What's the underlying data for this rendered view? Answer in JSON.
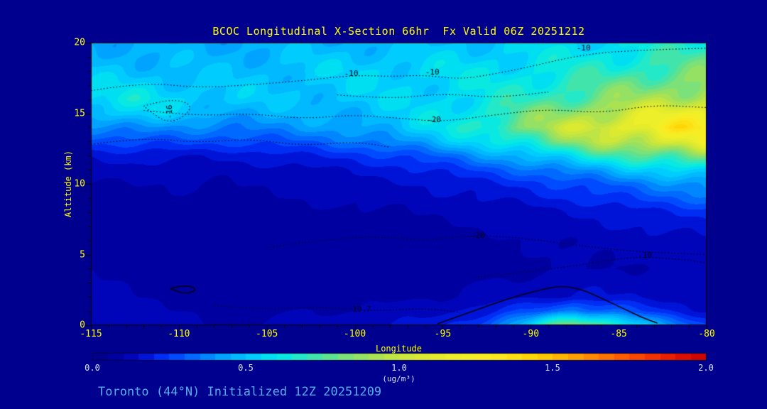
{
  "page": {
    "background": "#00008E",
    "accent_yellow": "#FFFF00",
    "caption_blue": "#57ACE8",
    "pale_label": "#CFE9FF"
  },
  "caption": "Toronto (44°N) Initialized 12Z 20251209",
  "chart_data": {
    "type": "heatmap",
    "title": "BCOC Longitudinal X-Section 66hr  Fx Valid 06Z 20251212",
    "xlabel": "Longitude",
    "ylabel": "Altitude (km)",
    "xlim": [
      -115,
      -80
    ],
    "ylim": [
      0,
      20
    ],
    "x_ticks": [
      -115,
      -110,
      -105,
      -100,
      -95,
      -90,
      -85,
      -80
    ],
    "y_ticks": [
      0,
      5,
      10,
      15,
      20
    ],
    "grid_on": false,
    "colorbar": {
      "min": 0.0,
      "max": 2.0,
      "tick_labels": [
        "0.0",
        "0.5",
        "1.0",
        "1.5",
        "2.0"
      ],
      "units_label": "(ug/m³)"
    },
    "grid": {
      "x": [
        -115,
        -112.5,
        -110,
        -107.5,
        -105,
        -102.5,
        -100,
        -97.5,
        -95,
        -92.5,
        -90,
        -87.5,
        -85,
        -82.5,
        -80
      ],
      "y": [
        0,
        1,
        2,
        4,
        6,
        8,
        10,
        11,
        12,
        13,
        14,
        15,
        16,
        18,
        20
      ],
      "values": [
        [
          0.16,
          0.13,
          0.11,
          0.1,
          0.11,
          0.12,
          0.13,
          0.15,
          0.18,
          0.3,
          0.55,
          0.9,
          0.7,
          0.4,
          0.25
        ],
        [
          0.14,
          0.11,
          0.1,
          0.09,
          0.09,
          0.1,
          0.1,
          0.12,
          0.14,
          0.18,
          0.26,
          0.38,
          0.3,
          0.2,
          0.15
        ],
        [
          0.12,
          0.1,
          0.08,
          0.07,
          0.07,
          0.08,
          0.08,
          0.09,
          0.1,
          0.12,
          0.14,
          0.16,
          0.15,
          0.13,
          0.12
        ],
        [
          0.09,
          0.08,
          0.07,
          0.06,
          0.06,
          0.06,
          0.07,
          0.07,
          0.08,
          0.08,
          0.09,
          0.1,
          0.1,
          0.11,
          0.11
        ],
        [
          0.08,
          0.07,
          0.07,
          0.06,
          0.06,
          0.07,
          0.07,
          0.08,
          0.08,
          0.09,
          0.1,
          0.11,
          0.12,
          0.13,
          0.14
        ],
        [
          0.09,
          0.08,
          0.08,
          0.08,
          0.08,
          0.09,
          0.09,
          0.1,
          0.11,
          0.12,
          0.13,
          0.15,
          0.17,
          0.2,
          0.22
        ],
        [
          0.1,
          0.1,
          0.1,
          0.1,
          0.11,
          0.12,
          0.13,
          0.14,
          0.16,
          0.19,
          0.22,
          0.27,
          0.32,
          0.37,
          0.42
        ],
        [
          0.12,
          0.13,
          0.12,
          0.12,
          0.13,
          0.14,
          0.16,
          0.18,
          0.22,
          0.27,
          0.33,
          0.4,
          0.47,
          0.54,
          0.6
        ],
        [
          0.16,
          0.17,
          0.16,
          0.16,
          0.18,
          0.2,
          0.22,
          0.26,
          0.32,
          0.4,
          0.5,
          0.6,
          0.7,
          0.78,
          0.85
        ],
        [
          0.26,
          0.28,
          0.27,
          0.26,
          0.28,
          0.3,
          0.34,
          0.4,
          0.48,
          0.58,
          0.7,
          0.85,
          0.98,
          1.08,
          1.15
        ],
        [
          0.38,
          0.4,
          0.38,
          0.36,
          0.38,
          0.4,
          0.44,
          0.5,
          0.58,
          0.7,
          0.85,
          1.0,
          1.15,
          1.25,
          1.32
        ],
        [
          0.52,
          0.55,
          0.5,
          0.46,
          0.45,
          0.46,
          0.48,
          0.52,
          0.58,
          0.66,
          0.78,
          0.9,
          1.02,
          1.12,
          1.2
        ],
        [
          0.58,
          0.6,
          0.55,
          0.52,
          0.5,
          0.5,
          0.52,
          0.54,
          0.56,
          0.6,
          0.68,
          0.76,
          0.85,
          0.92,
          1.0
        ],
        [
          0.5,
          0.5,
          0.49,
          0.48,
          0.5,
          0.52,
          0.54,
          0.55,
          0.56,
          0.58,
          0.6,
          0.64,
          0.68,
          0.74,
          0.8
        ],
        [
          0.45,
          0.44,
          0.44,
          0.45,
          0.46,
          0.47,
          0.48,
          0.48,
          0.5,
          0.52,
          0.54,
          0.56,
          0.58,
          0.62,
          0.65
        ]
      ]
    },
    "colormap": [
      [
        0.0,
        "#000084"
      ],
      [
        0.05,
        "#000096"
      ],
      [
        0.1,
        "#0000AA"
      ],
      [
        0.15,
        "#000AC8"
      ],
      [
        0.2,
        "#001EE6"
      ],
      [
        0.25,
        "#003CFF"
      ],
      [
        0.3,
        "#005AFF"
      ],
      [
        0.35,
        "#0078FF"
      ],
      [
        0.4,
        "#0096FF"
      ],
      [
        0.45,
        "#00AFFF"
      ],
      [
        0.5,
        "#00C3FF"
      ],
      [
        0.55,
        "#00D7FA"
      ],
      [
        0.6,
        "#00E6EB"
      ],
      [
        0.65,
        "#14EBD7"
      ],
      [
        0.7,
        "#32E6B9"
      ],
      [
        0.8,
        "#6EE182"
      ],
      [
        0.9,
        "#A0E15A"
      ],
      [
        1.0,
        "#C8E63C"
      ],
      [
        1.1,
        "#E1EB2D"
      ],
      [
        1.2,
        "#F0F028"
      ],
      [
        1.3,
        "#FAEB23"
      ],
      [
        1.45,
        "#FFD200"
      ],
      [
        1.6,
        "#FF9600"
      ],
      [
        1.75,
        "#FF5000"
      ],
      [
        1.9,
        "#E61400"
      ],
      [
        2.0,
        "#C80000"
      ]
    ],
    "contours": {
      "line_color": "#000014",
      "lines": [
        {
          "style": "dotted",
          "points": [
            [
              -115,
              16.6
            ],
            [
              -112,
              17.2
            ],
            [
              -109,
              16.8
            ],
            [
              -106,
              17.0
            ],
            [
              -103,
              17.3
            ],
            [
              -100,
              17.7
            ],
            [
              -98,
              17.6
            ],
            [
              -96,
              17.7
            ],
            [
              -94,
              17.4
            ],
            [
              -92,
              17.8
            ],
            [
              -90,
              18.3
            ],
            [
              -88,
              18.9
            ],
            [
              -86,
              19.3
            ],
            [
              -83,
              19.5
            ],
            [
              -80,
              19.6
            ]
          ]
        },
        {
          "style": "dotted",
          "points": [
            [
              -112,
              15.2
            ],
            [
              -109,
              14.8
            ],
            [
              -106,
              15.0
            ],
            [
              -103,
              14.6
            ],
            [
              -100,
              14.9
            ],
            [
              -97,
              14.6
            ],
            [
              -95,
              14.4
            ],
            [
              -92,
              14.9
            ],
            [
              -89,
              15.3
            ],
            [
              -86,
              15.0
            ],
            [
              -83,
              15.6
            ],
            [
              -80,
              15.4
            ]
          ]
        },
        {
          "style": "dotted",
          "points": [
            [
              -112,
              15.5
            ],
            [
              -110.5,
              16.1
            ],
            [
              -109,
              15.5
            ],
            [
              -110.5,
              14.1
            ],
            [
              -112,
              15.5
            ]
          ]
        },
        {
          "style": "dotted",
          "points": [
            [
              -115,
              12.8
            ],
            [
              -112,
              13.3
            ],
            [
              -109,
              12.9
            ],
            [
              -106,
              13.2
            ],
            [
              -103,
              12.7
            ],
            [
              -100,
              13.0
            ],
            [
              -98,
              12.6
            ]
          ]
        },
        {
          "style": "dotted",
          "points": [
            [
              -105,
              5.5
            ],
            [
              -102,
              6.0
            ],
            [
              -99,
              6.3
            ],
            [
              -96,
              6.0
            ],
            [
              -93,
              6.4
            ],
            [
              -90,
              6.1
            ],
            [
              -87,
              5.6
            ],
            [
              -84,
              5.2
            ],
            [
              -80,
              5.0
            ]
          ]
        },
        {
          "style": "dotted",
          "points": [
            [
              -93,
              3.4
            ],
            [
              -90,
              3.8
            ],
            [
              -87,
              4.3
            ],
            [
              -84,
              4.9
            ],
            [
              -81,
              4.6
            ],
            [
              -80,
              4.4
            ]
          ]
        },
        {
          "style": "dotted",
          "points": [
            [
              -108,
              1.4
            ],
            [
              -105,
              1.1
            ],
            [
              -102,
              1.3
            ],
            [
              -99,
              1.0
            ],
            [
              -96,
              1.2
            ],
            [
              -94,
              0.9
            ]
          ]
        },
        {
          "style": "dotted",
          "points": [
            [
              -101,
              16.3
            ],
            [
              -98,
              16.0
            ],
            [
              -95,
              16.4
            ],
            [
              -92,
              16.1
            ],
            [
              -89,
              16.5
            ]
          ]
        },
        {
          "style": "solid",
          "points": [
            [
              -95.3,
              0.1
            ],
            [
              -93.5,
              0.9
            ],
            [
              -91.5,
              1.8
            ],
            [
              -89.5,
              2.5
            ],
            [
              -88.2,
              2.8
            ],
            [
              -87,
              2.5
            ],
            [
              -85.8,
              1.8
            ],
            [
              -84.6,
              1.1
            ],
            [
              -83.6,
              0.5
            ],
            [
              -82.8,
              0.15
            ]
          ]
        },
        {
          "style": "solid",
          "points": [
            [
              -110.5,
              2.6
            ],
            [
              -109.6,
              2.9
            ],
            [
              -108.9,
              2.5
            ],
            [
              -109.7,
              2.2
            ],
            [
              -110.5,
              2.6
            ]
          ]
        }
      ],
      "labels": [
        {
          "text": "-10",
          "lon": -100.2,
          "alt": 17.8,
          "rotate": 0
        },
        {
          "text": "-10",
          "lon": -95.6,
          "alt": 17.9,
          "rotate": 0
        },
        {
          "text": "-10",
          "lon": -87.0,
          "alt": 19.6,
          "rotate": 0
        },
        {
          "text": "-20",
          "lon": -95.5,
          "alt": 14.5,
          "rotate": 0
        },
        {
          "text": "-16",
          "lon": -110.5,
          "alt": 15.1,
          "rotate": -90
        },
        {
          "text": "-20",
          "lon": -93.0,
          "alt": 6.3,
          "rotate": 0
        },
        {
          "text": "-10",
          "lon": -83.5,
          "alt": 4.9,
          "rotate": 0
        },
        {
          "text": "10.7",
          "lon": -99.6,
          "alt": 1.1,
          "rotate": 0
        }
      ]
    }
  }
}
